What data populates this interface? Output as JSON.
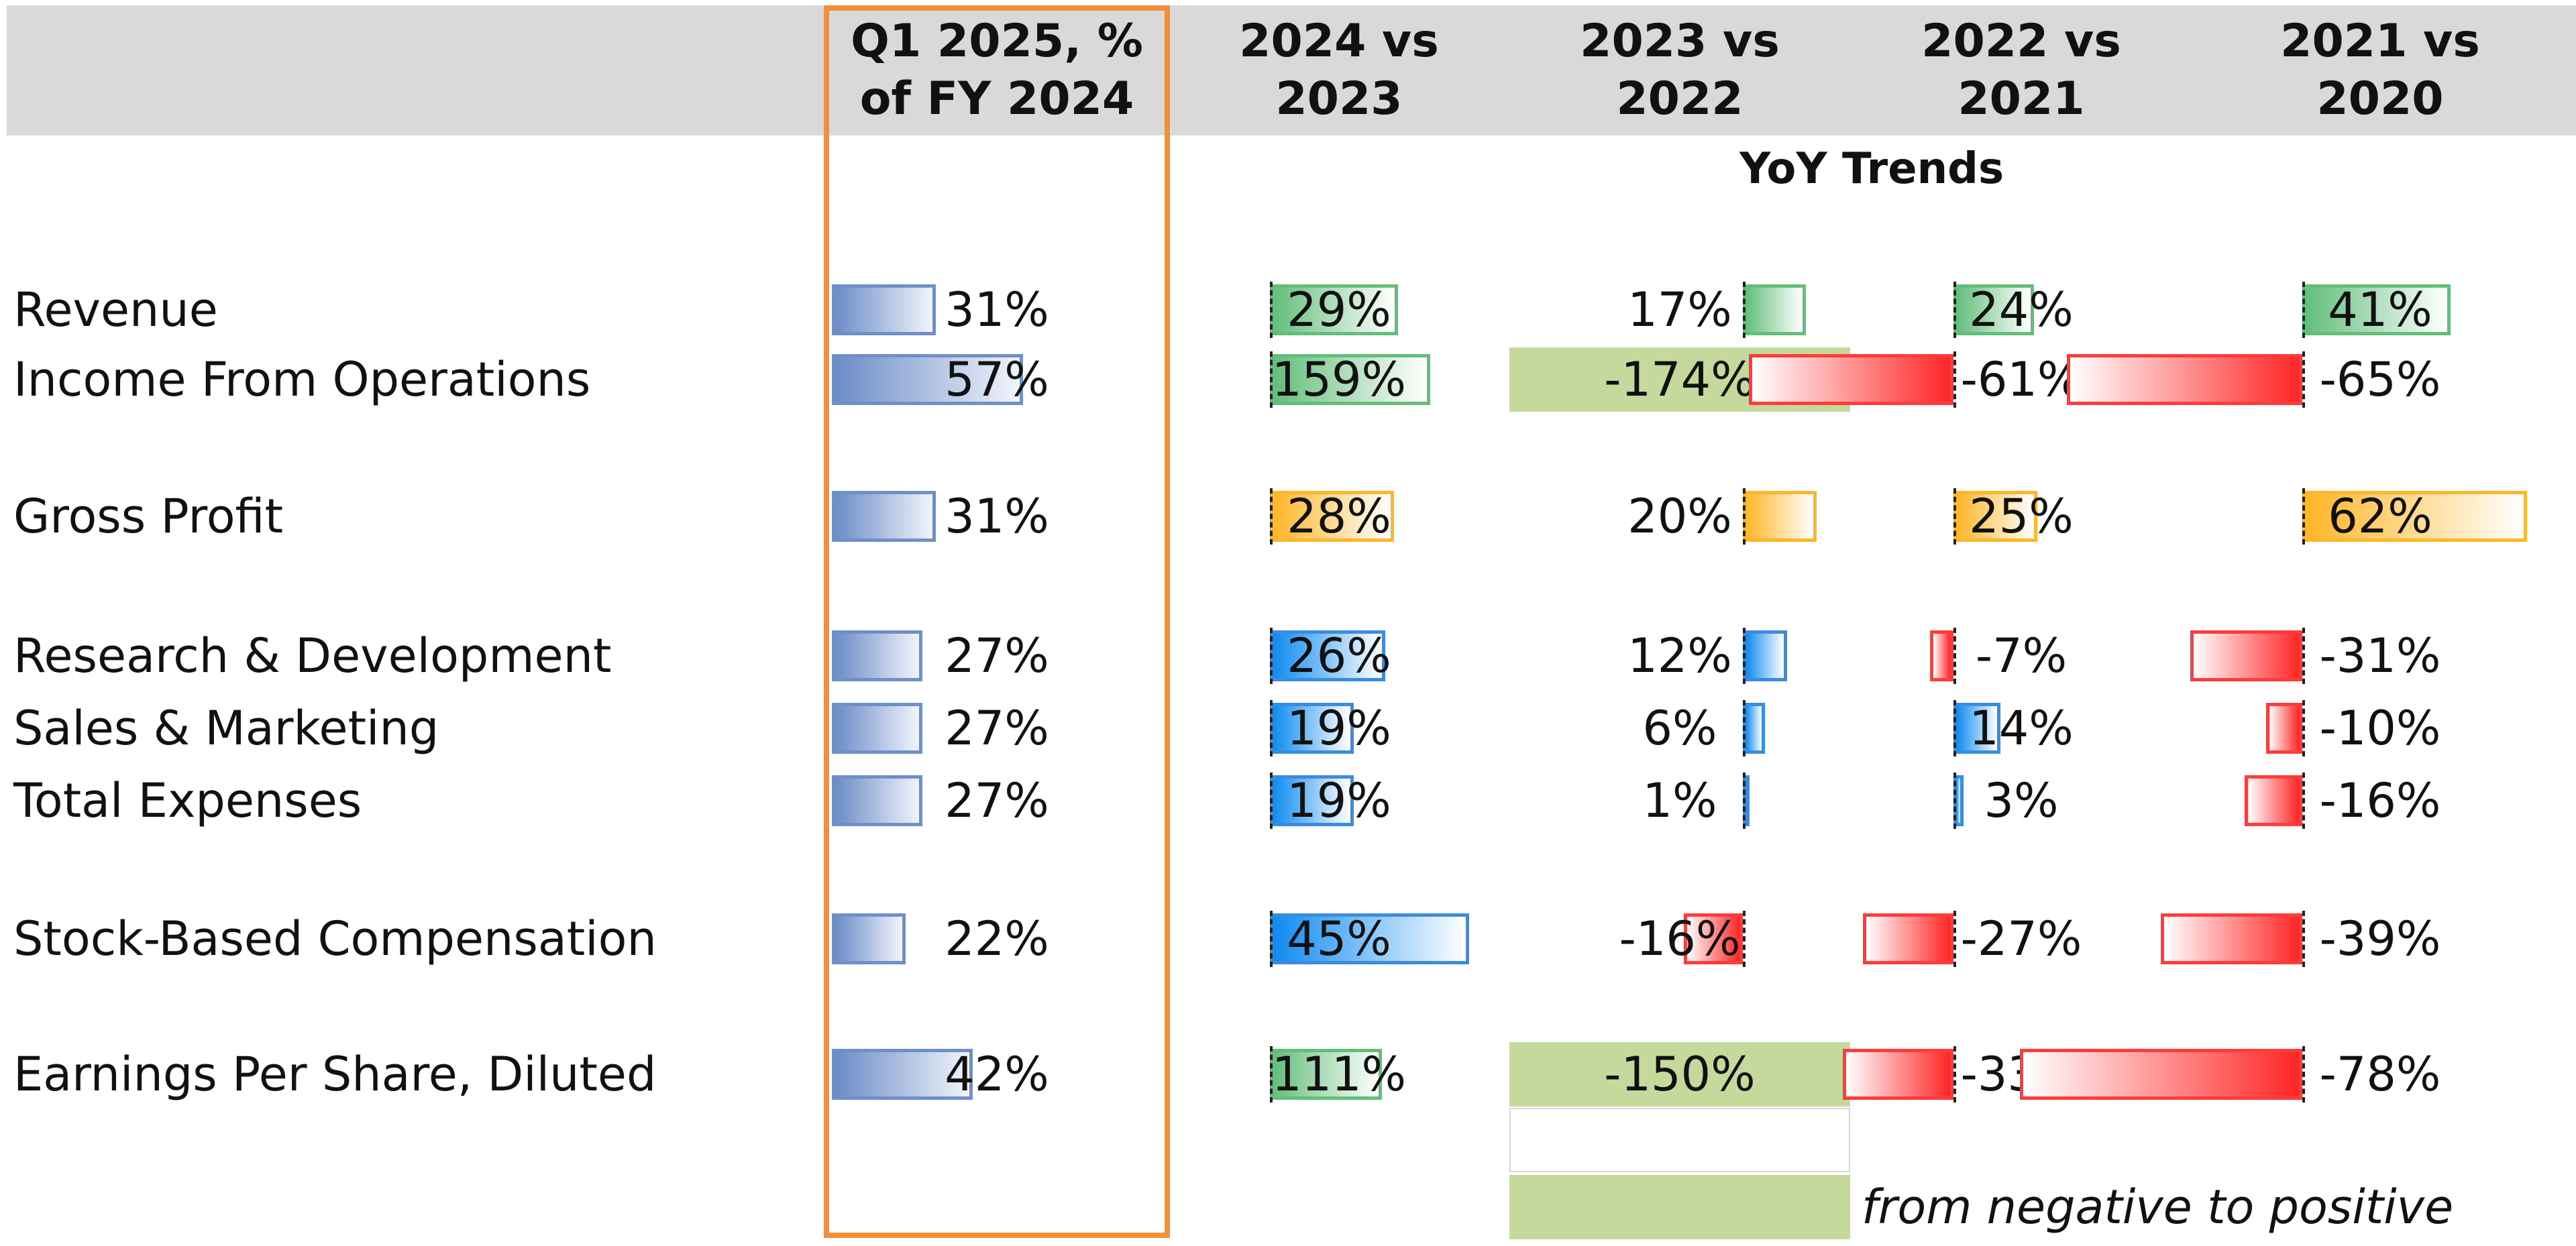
{
  "chart_data": {
    "type": "table",
    "section_title": "YoY Trends",
    "columns": [
      {
        "key": "q1",
        "label": "Q1 2025, %\nof FY 2024",
        "color": "#6b8cc6",
        "highlight": "#f0903a"
      },
      {
        "key": "y24",
        "label": "2024 vs\n2023"
      },
      {
        "key": "y23",
        "label": "2023 vs\n2022"
      },
      {
        "key": "y22",
        "label": "2022 vs\n2021"
      },
      {
        "key": "y21",
        "label": "2021 vs\n2020"
      }
    ],
    "rows": [
      {
        "label": "Revenue",
        "style": "bold",
        "color": "#63be7b",
        "values": [
          31,
          29,
          17,
          24,
          41
        ],
        "texts": [
          "31%",
          "29%",
          "17%",
          "24%",
          "41%"
        ]
      },
      {
        "label": "Income From Operations",
        "style": "italic",
        "color": "#63be7b",
        "values": [
          57,
          159,
          -174,
          -61,
          -65
        ],
        "texts": [
          "57%",
          "159%",
          "-174%",
          "-61%",
          "-65%"
        ]
      },
      {
        "label": "Gross Profit",
        "style": "bold",
        "color": "#ffb628",
        "values": [
          31,
          28,
          20,
          25,
          62
        ],
        "texts": [
          "31%",
          "28%",
          "20%",
          "25%",
          "62%"
        ]
      },
      {
        "label": "Research & Development",
        "style": "italic",
        "color": "#0f8bf0",
        "values": [
          27,
          26,
          12,
          -7,
          -31
        ],
        "texts": [
          "27%",
          "26%",
          "12%",
          "-7%",
          "-31%"
        ]
      },
      {
        "label": "Sales & Marketing",
        "style": "italic",
        "color": "#0f8bf0",
        "values": [
          27,
          19,
          6,
          14,
          -10
        ],
        "texts": [
          "27%",
          "19%",
          "6%",
          "14%",
          "-10%"
        ]
      },
      {
        "label": "Total Expenses",
        "style": "bold",
        "color": "#0f8bf0",
        "values": [
          27,
          19,
          1,
          3,
          -16
        ],
        "texts": [
          "27%",
          "19%",
          "1%",
          "3%",
          "-16%"
        ]
      },
      {
        "label": "Stock-Based Compensation",
        "style": "italic",
        "color": "#0f8bf0",
        "values": [
          22,
          45,
          -16,
          -27,
          -39
        ],
        "texts": [
          "22%",
          "45%",
          "-16%",
          "-27%",
          "-39%"
        ]
      },
      {
        "label": "Earnings Per Share, Diluted",
        "style": "bold",
        "color": "#63be7b",
        "values": [
          42,
          111,
          -150,
          -33,
          -78
        ],
        "texts": [
          "42%",
          "111%",
          "-150%",
          "-33%",
          "-78%"
        ]
      }
    ],
    "negative_color": "#ff2626",
    "sign_flip_fill_color": "#c5d99d",
    "legend": {
      "text": "from negative to positive",
      "color": "#c5d99d"
    }
  }
}
